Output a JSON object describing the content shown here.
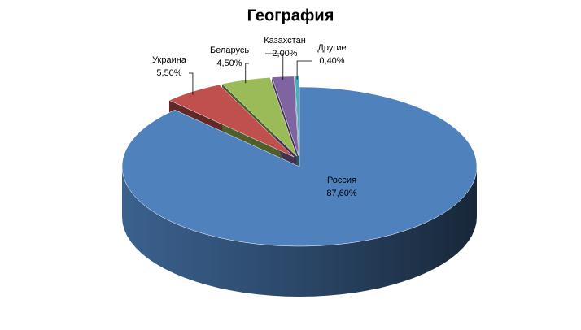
{
  "chart_data": {
    "type": "pie",
    "title": "География",
    "categories": [
      "Россия",
      "Украина",
      "Беларусь",
      "Казахстан",
      "Другие"
    ],
    "values": [
      87.6,
      5.5,
      4.5,
      2.0,
      0.4
    ],
    "value_labels": [
      "87,60%",
      "5,50%",
      "4,50%",
      "2,00%",
      "0,40%"
    ],
    "colors": [
      "#4f81bd",
      "#c0504d",
      "#9bbb59",
      "#8064a2",
      "#4bacc6"
    ]
  }
}
